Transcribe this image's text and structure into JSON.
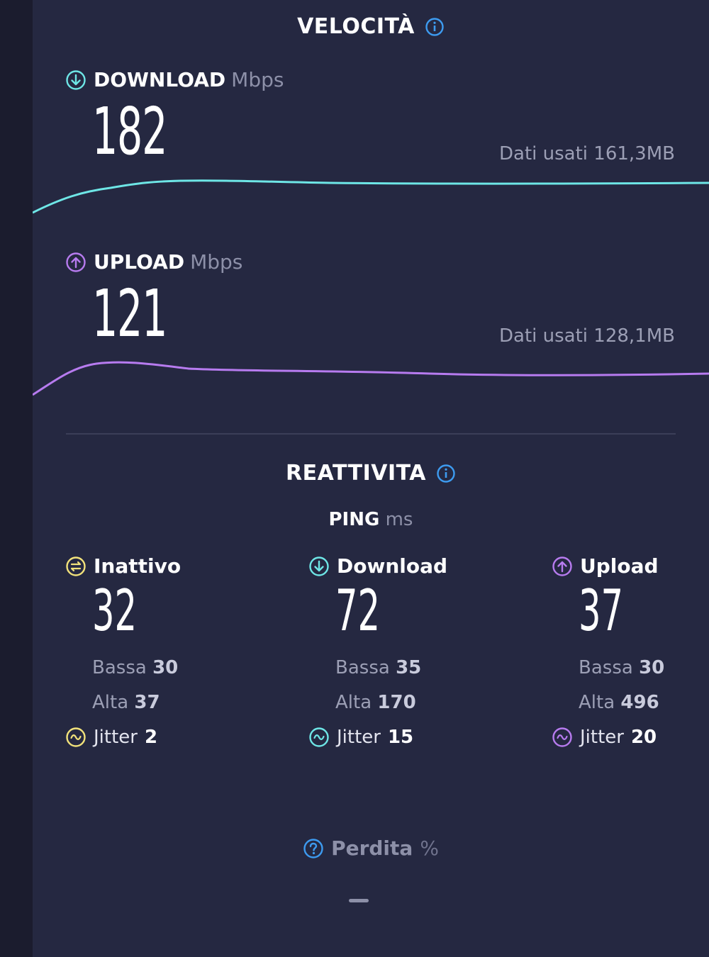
{
  "colors": {
    "download": "#6ee6e6",
    "upload": "#b77bef",
    "idle": "#f2e27b",
    "info": "#3d9bf0"
  },
  "speed": {
    "title": "VELOCITÀ",
    "download": {
      "label": "DOWNLOAD",
      "unit": "Mbps",
      "value": "182",
      "data_used": "Dati usati 161,3MB",
      "icon": "arrow-down-circle-icon"
    },
    "upload": {
      "label": "UPLOAD",
      "unit": "Mbps",
      "value": "121",
      "data_used": "Dati usati 128,1MB",
      "icon": "arrow-up-circle-icon"
    }
  },
  "responsiveness": {
    "title": "REATTIVITA",
    "ping_label": "PING",
    "ping_unit": "ms",
    "columns": [
      {
        "label": "Inattivo",
        "value": "32",
        "low_label": "Bassa",
        "low": "30",
        "high_label": "Alta",
        "high": "37",
        "jitter_label": "Jitter",
        "jitter": "2",
        "icon": "idle-circle-icon"
      },
      {
        "label": "Download",
        "value": "72",
        "low_label": "Bassa",
        "low": "35",
        "high_label": "Alta",
        "high": "170",
        "jitter_label": "Jitter",
        "jitter": "15",
        "icon": "arrow-down-circle-icon"
      },
      {
        "label": "Upload",
        "value": "37",
        "low_label": "Bassa",
        "low": "30",
        "high_label": "Alta",
        "high": "496",
        "jitter_label": "Jitter",
        "jitter": "20",
        "icon": "arrow-up-circle-icon"
      }
    ]
  },
  "loss": {
    "label": "Perdita",
    "unit": "%",
    "value": "—",
    "icon": "question-circle-icon"
  }
}
